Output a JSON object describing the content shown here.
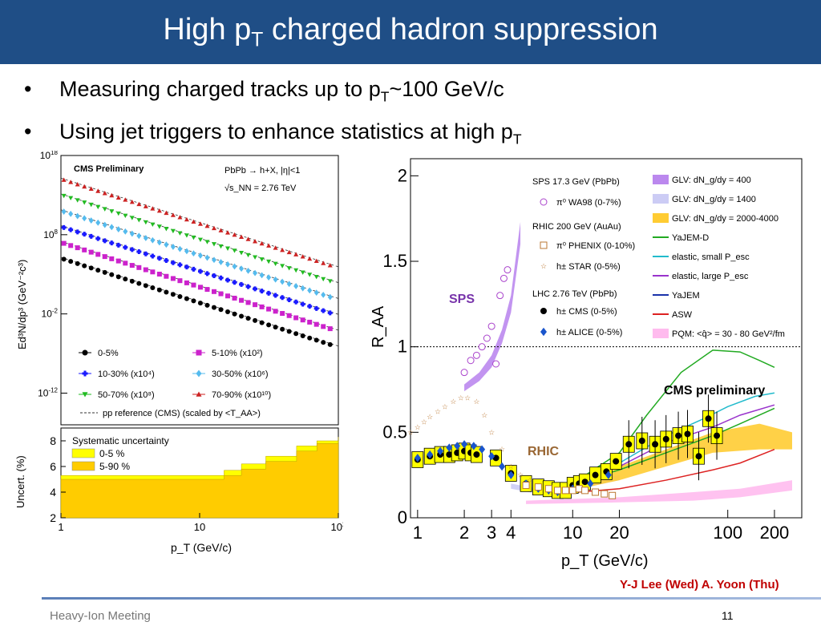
{
  "slide": {
    "title_main": "High p",
    "title_sub": "T",
    "title_rest": " charged hadron suppression",
    "bullets": [
      {
        "text": "Measuring charged tracks up to p",
        "sub": "T",
        "tail": "~100 GeV/c"
      },
      {
        "text": "Using jet triggers to enhance statistics at high p",
        "sub": "T",
        "tail": ""
      }
    ],
    "credit": "Y-J Lee (Wed) A. Yoon (Thu)",
    "footer_left": "Heavy-Ion Meeting",
    "page_number": "11"
  },
  "chart_data": [
    {
      "type": "scatter",
      "panel": "spectra",
      "title": "CMS Preliminary",
      "annotation": "PbPb → h+X, |η|<1",
      "annotation2": "√s_NN = 2.76 TeV",
      "xlabel": "p_T (GeV/c)",
      "ylabel": "Ed³N/dp³ (GeV⁻²c³)",
      "xscale": "log",
      "yscale": "log",
      "xlim": [
        1,
        100
      ],
      "ylim": [
        1e-16,
        1e+18
      ],
      "yticks": [
        "10^18",
        "10^8",
        "10^-2",
        "10^-12"
      ],
      "xticks": [
        "1",
        "10",
        "10^2"
      ],
      "legend_placement": "bottom",
      "series": [
        {
          "name": "0-5%",
          "marker": "circle",
          "color": "#000000",
          "y_at_1": 100000.0,
          "slope": -5.6
        },
        {
          "name": "5-10%  (x10²)",
          "marker": "square",
          "color": "#cc22cc",
          "y_at_1": 10000000.0,
          "slope": -5.6
        },
        {
          "name": "10-30%  (x10⁴)",
          "marker": "cross",
          "color": "#1a1aff",
          "y_at_1": 1000000000.0,
          "slope": -5.6
        },
        {
          "name": "30-50%  (x10⁶)",
          "marker": "diamond",
          "color": "#55bbee",
          "y_at_1": 100000000000.0,
          "slope": -5.6
        },
        {
          "name": "50-70%  (x10⁸)",
          "marker": "triangle-down",
          "color": "#22bb22",
          "y_at_1": 10000000000000.0,
          "slope": -5.6
        },
        {
          "name": "70-90%  (x10¹⁰)",
          "marker": "triangle-up",
          "color": "#cc2222",
          "y_at_1": 1000000000000000.0,
          "slope": -5.6
        }
      ],
      "reference_label": "pp reference (CMS) (scaled by <T_AA>)"
    },
    {
      "type": "area",
      "panel": "uncertainty",
      "title": "Systematic uncertainty",
      "xlabel": "p_T (GeV/c)",
      "ylabel": "Uncert. (%)",
      "xscale": "log",
      "xlim": [
        1,
        100
      ],
      "ylim": [
        2,
        9
      ],
      "yticks": [
        "2",
        "4",
        "6",
        "8"
      ],
      "xticks": [
        "1",
        "10",
        "10^2"
      ],
      "series": [
        {
          "name": "0-5 %",
          "color": "#ffff00",
          "x": [
            1,
            10,
            15,
            20,
            30,
            50,
            70,
            100
          ],
          "values": [
            5.3,
            5.3,
            5.7,
            6.2,
            6.8,
            7.6,
            8.0,
            8.3
          ]
        },
        {
          "name": "5-90 %",
          "color": "#ffcc00",
          "x": [
            1,
            10,
            15,
            20,
            30,
            50,
            70,
            100
          ],
          "values": [
            5.0,
            5.0,
            5.3,
            5.8,
            6.4,
            7.2,
            7.8,
            8.0
          ]
        }
      ]
    },
    {
      "type": "scatter",
      "panel": "raa",
      "xlabel": "p_T (GeV/c)",
      "ylabel": "R_AA",
      "xscale": "log",
      "xlim": [
        0.9,
        300
      ],
      "ylim": [
        0,
        2.1
      ],
      "xticks": [
        "1",
        "2",
        "3",
        "4",
        "10",
        "20",
        "100",
        "200"
      ],
      "yticks": [
        "0",
        "0.5",
        "1",
        "1.5",
        "2"
      ],
      "annotations": [
        "SPS",
        "RHIC",
        "CMS preliminary"
      ],
      "legend_headers": [
        "SPS 17.3 GeV (PbPb)",
        "RHIC 200 GeV (AuAu)",
        "LHC 2.76 TeV (PbPb)"
      ],
      "legend_left": [
        {
          "name": "π⁰  WA98 (0-7%)",
          "marker": "open-circle",
          "color": "#aa44cc"
        },
        {
          "name": "π⁰  PHENIX (0-10%)",
          "marker": "open-square",
          "color": "#bb7733"
        },
        {
          "name": "h±  STAR (0-5%)",
          "marker": "star",
          "color": "#bb7733"
        },
        {
          "name": "h±  CMS (0-5%)",
          "marker": "circle",
          "color": "#000000"
        },
        {
          "name": "h±  ALICE (0-5%)",
          "marker": "diamond",
          "color": "#1a55cc"
        }
      ],
      "legend_right": [
        {
          "name": "GLV: dN_g/dy = 400",
          "color": "#bb88ee",
          "kind": "band"
        },
        {
          "name": "GLV: dN_g/dy = 1400",
          "color": "#ccccf5",
          "kind": "band"
        },
        {
          "name": "GLV: dN_g/dy = 2000-4000",
          "color": "#ffcc33",
          "kind": "band"
        },
        {
          "name": "YaJEM-D",
          "color": "#22aa22",
          "kind": "line"
        },
        {
          "name": "elastic, small P_esc",
          "color": "#22bbcc",
          "kind": "line"
        },
        {
          "name": "elastic, large P_esc",
          "color": "#9933cc",
          "kind": "line"
        },
        {
          "name": "YaJEM",
          "color": "#1a33aa",
          "kind": "line"
        },
        {
          "name": "ASW",
          "color": "#dd2222",
          "kind": "line"
        },
        {
          "name": "PQM: <q̂> = 30 - 80 GeV²/fm",
          "color": "#ffbbee",
          "kind": "band"
        }
      ],
      "series": [
        {
          "name": "CMS (0-5%)",
          "x": [
            1.0,
            1.2,
            1.4,
            1.6,
            1.8,
            2.0,
            2.2,
            2.4,
            3.2,
            4.0,
            5.0,
            6.0,
            7.0,
            8.0,
            9.0,
            10.0,
            11.0,
            12.0,
            14.0,
            16.5,
            19.0,
            23.0,
            28.0,
            34.0,
            40.0,
            48.0,
            55.0,
            65.0,
            75.0,
            85.0
          ],
          "values": [
            0.34,
            0.36,
            0.37,
            0.37,
            0.38,
            0.39,
            0.38,
            0.37,
            0.35,
            0.26,
            0.2,
            0.18,
            0.17,
            0.16,
            0.16,
            0.19,
            0.2,
            0.21,
            0.25,
            0.27,
            0.33,
            0.43,
            0.45,
            0.43,
            0.46,
            0.48,
            0.49,
            0.36,
            0.58,
            0.48
          ]
        },
        {
          "name": "ALICE (0-5%)",
          "x": [
            1.0,
            1.2,
            1.4,
            1.6,
            1.8,
            2.0,
            2.3,
            2.6,
            3.0,
            3.5,
            4.0,
            5.0,
            6.0,
            7.0,
            8.0,
            10.0,
            13.0,
            17.0
          ],
          "values": [
            0.35,
            0.37,
            0.39,
            0.41,
            0.42,
            0.43,
            0.42,
            0.4,
            0.36,
            0.3,
            0.25,
            0.2,
            0.17,
            0.16,
            0.15,
            0.17,
            0.2,
            0.25
          ]
        },
        {
          "name": "WA98 (0-7%)",
          "x": [
            2.0,
            2.2,
            2.4,
            2.6,
            2.8,
            3.0,
            3.2,
            3.4,
            3.6,
            3.8
          ],
          "values": [
            0.85,
            0.92,
            0.95,
            1.0,
            1.05,
            1.12,
            0.9,
            1.3,
            1.4,
            1.45
          ]
        },
        {
          "name": "STAR (0-5%)",
          "x": [
            0.9,
            1.0,
            1.1,
            1.2,
            1.35,
            1.5,
            1.7,
            1.9,
            2.1,
            2.4,
            2.7,
            3.0,
            3.5,
            4.0,
            4.6,
            5.3
          ],
          "values": [
            0.5,
            0.53,
            0.56,
            0.59,
            0.62,
            0.65,
            0.68,
            0.7,
            0.7,
            0.68,
            0.6,
            0.5,
            0.4,
            0.3,
            0.25,
            0.22
          ]
        },
        {
          "name": "PHENIX (0-10%)",
          "x": [
            5.0,
            6.0,
            7.0,
            8.0,
            9.0,
            10.0,
            11.0,
            12.0,
            14.0,
            16.0,
            18.0
          ],
          "values": [
            0.19,
            0.18,
            0.17,
            0.16,
            0.16,
            0.16,
            0.17,
            0.16,
            0.15,
            0.14,
            0.13
          ]
        }
      ]
    }
  ]
}
